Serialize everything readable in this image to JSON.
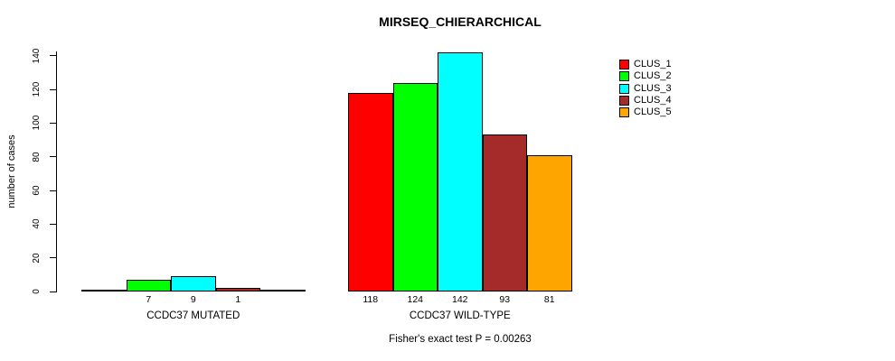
{
  "chart_data": {
    "type": "bar",
    "title": "MIRSEQ_CHIERARCHICAL",
    "ylabel": "number of cases",
    "xlabel": "",
    "ylim": [
      0,
      140
    ],
    "yticks": [
      0,
      20,
      40,
      60,
      80,
      100,
      120,
      140
    ],
    "grid": false,
    "legend_position": "top-right",
    "note": "Fisher's exact test P = 0.00263",
    "categories": [
      "CCDC37 MUTATED",
      "CCDC37 WILD-TYPE"
    ],
    "series": [
      {
        "name": "CLUS_1",
        "color": "#FF0000",
        "values": [
          0,
          118
        ]
      },
      {
        "name": "CLUS_2",
        "color": "#00FF00",
        "values": [
          7,
          124
        ]
      },
      {
        "name": "CLUS_3",
        "color": "#00FFFF",
        "values": [
          9,
          142
        ]
      },
      {
        "name": "CLUS_4",
        "color": "#A52A2A",
        "values": [
          1,
          93
        ]
      },
      {
        "name": "CLUS_5",
        "color": "#FFA500",
        "values": [
          0,
          81
        ]
      }
    ],
    "bar_value_labels": [
      [
        "",
        "7",
        "9",
        "1",
        ""
      ],
      [
        "118",
        "124",
        "142",
        "93",
        "81"
      ]
    ],
    "colors": {
      "axis": "#000000",
      "text": "#000000",
      "background": "#FFFFFF"
    }
  }
}
